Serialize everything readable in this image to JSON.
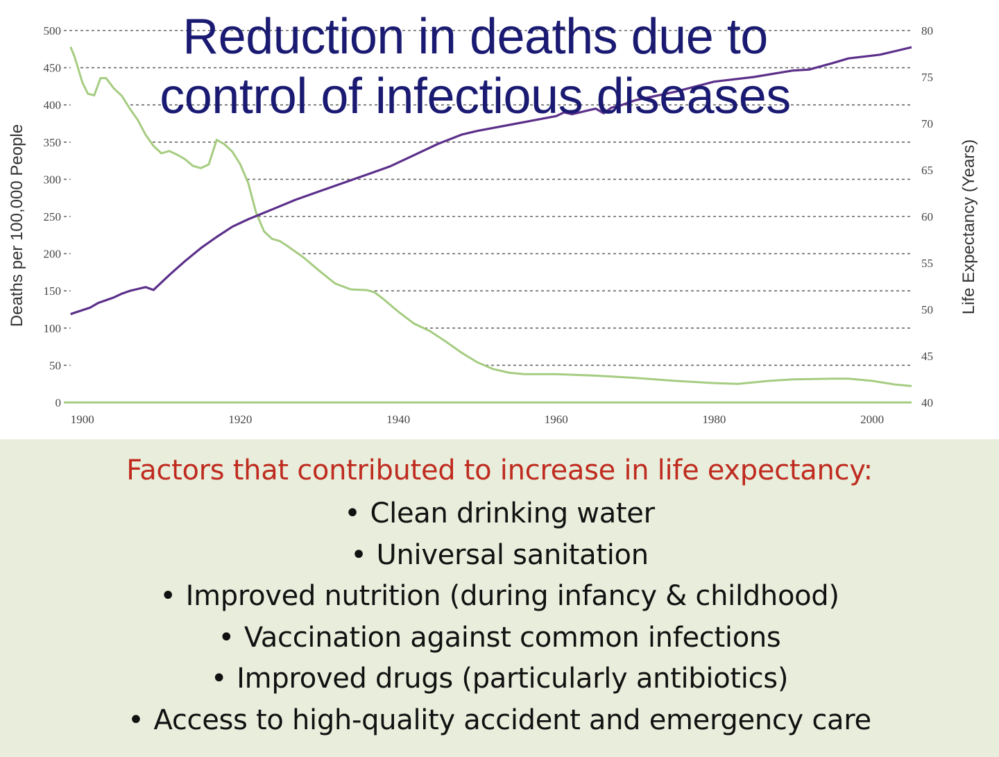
{
  "title_lines": [
    "Reduction in deaths due to",
    "control of infectious diseases"
  ],
  "colors": {
    "title": "#1a1a72",
    "deaths_fill": "#9cbf78",
    "deaths_line": "#a5cc80",
    "life_line": "#5b2f8a",
    "heading": "#bf2b1f",
    "panel": "#e9eddb"
  },
  "chart_data": {
    "type": "area",
    "title": "Reduction in deaths due to control of infectious diseases",
    "xlabel": "",
    "ylabel": "Deaths per 100,000 People",
    "y2label": "Life Expectancy (Years)",
    "xlim": [
      1898,
      2005
    ],
    "ylim": [
      0,
      500
    ],
    "y2lim": [
      40,
      80
    ],
    "x_ticks": [
      "1900",
      "1920",
      "1940",
      "1960",
      "1980",
      "2000"
    ],
    "y_ticks": [
      "0",
      "50",
      "100",
      "150",
      "200",
      "250",
      "300",
      "350",
      "400",
      "450",
      "500"
    ],
    "y2_ticks": [
      "40",
      "45",
      "50",
      "55",
      "60",
      "65",
      "70",
      "75",
      "80"
    ],
    "grid": true,
    "series": [
      {
        "name": "Deaths per 100,000 People",
        "axis": "left",
        "style": "area",
        "x": [
          1898.5,
          1899,
          1900,
          1900.7,
          1901.5,
          1902.3,
          1903,
          1904,
          1905,
          1906,
          1907,
          1908,
          1909,
          1910,
          1911,
          1912,
          1913,
          1914,
          1915,
          1916,
          1917,
          1918,
          1919,
          1920,
          1921,
          1922,
          1923,
          1924,
          1925,
          1926,
          1928,
          1930,
          1932,
          1934,
          1936,
          1937,
          1938,
          1940,
          1942,
          1944,
          1946,
          1948,
          1950,
          1952,
          1954,
          1956,
          1958,
          1960,
          1965,
          1970,
          1975,
          1980,
          1983,
          1987,
          1990,
          1995,
          1997,
          2000,
          2003,
          2005
        ],
        "values": [
          478,
          465,
          430,
          415,
          413,
          436,
          436,
          422,
          412,
          395,
          380,
          360,
          345,
          335,
          338,
          333,
          327,
          318,
          315,
          320,
          353,
          347,
          337,
          320,
          295,
          255,
          230,
          220,
          217,
          210,
          195,
          177,
          160,
          152,
          151,
          148,
          140,
          122,
          106,
          96,
          82,
          67,
          54,
          45,
          40,
          38,
          38,
          38,
          36,
          33,
          29,
          26,
          25,
          29,
          31,
          32,
          32,
          29,
          24,
          22
        ]
      },
      {
        "name": "Life Expectancy (Years)",
        "axis": "right",
        "style": "line",
        "x": [
          1898.5,
          1901,
          1902,
          1903,
          1904,
          1905,
          1906,
          1907,
          1908,
          1909,
          1911,
          1913,
          1915,
          1917,
          1919,
          1921,
          1923,
          1925,
          1927,
          1930,
          1933,
          1936,
          1939,
          1942,
          1945,
          1948,
          1950,
          1955,
          1960,
          1961,
          1962,
          1963,
          1964,
          1965,
          1966,
          1967,
          1968,
          1970,
          1975,
          1980,
          1985,
          1990,
          1992,
          1995,
          1997,
          2000,
          2001,
          2003,
          2005
        ],
        "values": [
          49.5,
          50.2,
          50.7,
          51.0,
          51.3,
          51.7,
          52.0,
          52.2,
          52.4,
          52.1,
          53.7,
          55.2,
          56.6,
          57.8,
          58.9,
          59.7,
          60.4,
          61.1,
          61.8,
          62.7,
          63.6,
          64.5,
          65.4,
          66.6,
          67.8,
          68.8,
          69.2,
          70.0,
          70.8,
          71.2,
          71.0,
          71.2,
          71.4,
          71.6,
          71.1,
          71.7,
          71.9,
          72.5,
          73.4,
          74.5,
          75.0,
          75.7,
          75.8,
          76.5,
          77.0,
          77.3,
          77.4,
          77.8,
          78.2
        ]
      }
    ]
  },
  "factors": {
    "heading": "Factors that contributed to increase in life expectancy:",
    "bullet": "•",
    "items": [
      "Clean drinking water",
      "Universal sanitation",
      "Improved nutrition (during infancy & childhood)",
      "Vaccination against common infections",
      "Improved drugs (particularly antibiotics)",
      "Access to high-quality accident and emergency care"
    ]
  }
}
